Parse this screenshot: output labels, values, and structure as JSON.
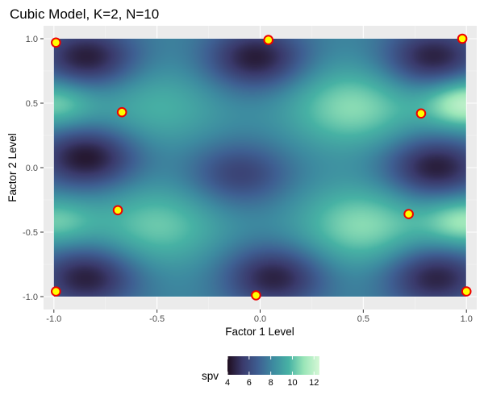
{
  "chart_data": {
    "type": "heatmap",
    "title": "Cubic Model, K=2, N=10",
    "xlabel": "Factor 1 Level",
    "ylabel": "Factor 2 Level",
    "xlim": [
      -1.05,
      1.05
    ],
    "ylim": [
      -1.1,
      1.1
    ],
    "x_ticks": [
      -1.0,
      -0.5,
      0.0,
      0.5,
      1.0
    ],
    "y_ticks": [
      -1.0,
      -0.5,
      0.0,
      0.5,
      1.0
    ],
    "x_tick_labels": [
      "-1.0",
      "-0.5",
      "0.0",
      "0.5",
      "1.0"
    ],
    "y_tick_labels": [
      "-1.0",
      "-0.5",
      "0.0",
      "0.5",
      "1.0"
    ],
    "heatmap_extent": {
      "x": [
        -1.0,
        1.0
      ],
      "y": [
        -1.0,
        1.0
      ]
    },
    "grid": true,
    "fill_variable": "spv",
    "fill_range": [
      4,
      12.5
    ],
    "colorscale": [
      "#1f0e1f",
      "#3a3a6c",
      "#3e5f92",
      "#3d8ba0",
      "#47b2a4",
      "#9be6b8",
      "#d6f7d6"
    ],
    "surface_landmarks": {
      "lows": [
        {
          "x": -0.84,
          "y": 0.85,
          "spv": 4.4
        },
        {
          "x": -0.02,
          "y": 0.85,
          "spv": 4.4
        },
        {
          "x": 0.84,
          "y": 0.85,
          "spv": 4.5
        },
        {
          "x": -0.84,
          "y": 0.08,
          "spv": 4.2
        },
        {
          "x": 0.85,
          "y": 0.0,
          "spv": 4.4
        },
        {
          "x": -0.84,
          "y": -0.85,
          "spv": 4.5
        },
        {
          "x": 0.07,
          "y": -0.85,
          "spv": 4.6
        },
        {
          "x": 0.85,
          "y": -0.85,
          "spv": 4.6
        },
        {
          "x": -0.1,
          "y": -0.05,
          "spv": 5.7
        }
      ],
      "highs": [
        {
          "x": 0.45,
          "y": 0.47,
          "spv": 10.8
        },
        {
          "x": 0.5,
          "y": -0.45,
          "spv": 10.8
        },
        {
          "x": -0.5,
          "y": -0.45,
          "spv": 10.3
        },
        {
          "x": -0.5,
          "y": 0.47,
          "spv": 9.6
        },
        {
          "x": 1.0,
          "y": 0.5,
          "spv": 12.0
        },
        {
          "x": 1.0,
          "y": -0.42,
          "spv": 11.2
        },
        {
          "x": -1.0,
          "y": 0.5,
          "spv": 10.6
        },
        {
          "x": -1.0,
          "y": -0.42,
          "spv": 10.3
        }
      ],
      "base_spv": 8.1
    },
    "points": [
      {
        "x": -0.99,
        "y": 0.97
      },
      {
        "x": 0.04,
        "y": 0.99
      },
      {
        "x": 0.98,
        "y": 1.0
      },
      {
        "x": -0.67,
        "y": 0.43
      },
      {
        "x": 0.78,
        "y": 0.42
      },
      {
        "x": -0.69,
        "y": -0.33
      },
      {
        "x": 0.72,
        "y": -0.36
      },
      {
        "x": -0.99,
        "y": -0.96
      },
      {
        "x": -0.02,
        "y": -0.99
      },
      {
        "x": 1.0,
        "y": -0.96
      }
    ],
    "point_color": "#ffff00",
    "point_outline": "#ee0000",
    "legend": {
      "title": "spv",
      "position": "bottom",
      "breaks": [
        4,
        6,
        8,
        10,
        12
      ],
      "break_labels": [
        "4",
        "6",
        "8",
        "10",
        "12"
      ]
    }
  },
  "colors": {
    "panel_background": "#ebebeb",
    "grid_major": "#ffffff",
    "grid_minor": "#f5f5f5",
    "tick_text": "#4d4d4d",
    "tick_mark": "#333333"
  }
}
